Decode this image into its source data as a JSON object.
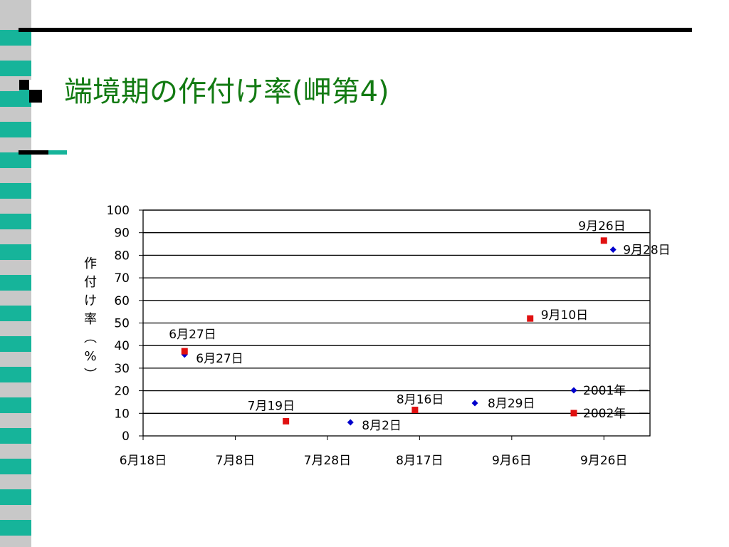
{
  "slide": {
    "title": "端境期の作付け率(岬第4)"
  },
  "chart_data": {
    "type": "scatter",
    "title": "",
    "xlabel": "",
    "ylabel": "作付け率(%)",
    "ylabel_chars": [
      "作",
      "付",
      "け",
      "率",
      "︵",
      "%",
      "︶"
    ],
    "ylim": [
      0,
      100
    ],
    "yticks": [
      0,
      10,
      20,
      30,
      40,
      50,
      60,
      70,
      80,
      90,
      100
    ],
    "xlim": [
      "2001-06-18",
      "2001-10-06"
    ],
    "xticks": [
      {
        "date": "2001-06-18",
        "label": "6月18日"
      },
      {
        "date": "2001-07-08",
        "label": "7月8日"
      },
      {
        "date": "2001-07-28",
        "label": "7月28日"
      },
      {
        "date": "2001-08-17",
        "label": "8月17日"
      },
      {
        "date": "2001-09-06",
        "label": "9月6日"
      },
      {
        "date": "2001-09-26",
        "label": "9月26日"
      }
    ],
    "grid": true,
    "legend": "bottom-right",
    "series": [
      {
        "name": "2001年",
        "marker": "diamond",
        "color": "#0000cc",
        "points": [
          {
            "x": "2001-06-27",
            "y": 36,
            "label": "6月27日"
          },
          {
            "x": "2001-08-02",
            "y": 6,
            "label": "8月2日"
          },
          {
            "x": "2001-08-29",
            "y": 14.5,
            "label": "8月29日"
          },
          {
            "x": "2001-09-28",
            "y": 82.5,
            "label": "9月28日"
          }
        ]
      },
      {
        "name": "2002年",
        "marker": "square",
        "color": "#e01010",
        "points": [
          {
            "x": "2001-06-27",
            "y": 37.5,
            "label": "6月27日"
          },
          {
            "x": "2001-07-19",
            "y": 6.5,
            "label": "7月19日"
          },
          {
            "x": "2001-08-16",
            "y": 11.5,
            "label": "8月16日"
          },
          {
            "x": "2001-09-10",
            "y": 52,
            "label": "9月10日"
          },
          {
            "x": "2001-09-26",
            "y": 86.5,
            "label": "9月26日"
          }
        ]
      }
    ]
  }
}
